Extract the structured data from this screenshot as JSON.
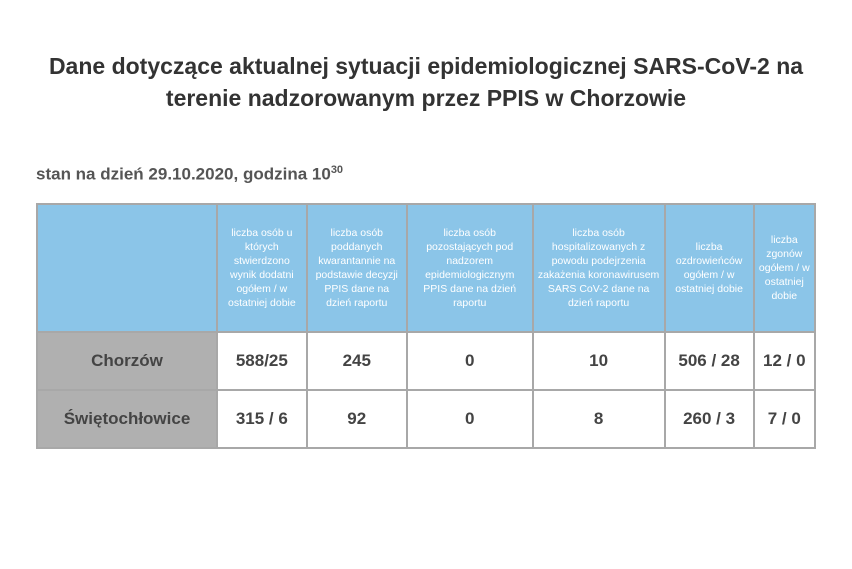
{
  "title": "Dane dotyczące aktualnej sytuacji epidemiologicznej SARS-CoV-2 na terenie nadzorowanym przez PPIS w Chorzowie",
  "status_prefix": "stan na dzień ",
  "status_date": "29.10.2020",
  "status_time_prefix": ", godzina 10",
  "status_time_sup": "30",
  "table": {
    "header_bg": "#8bc5e8",
    "header_text_color": "#ffffff",
    "rowlabel_bg": "#b0b0b0",
    "border_color": "#a8a8a8",
    "columns": [
      "liczba osób u których stwierdzono wynik dodatni ogółem / w ostatniej dobie",
      "liczba osób poddanych kwarantannie na podstawie decyzji PPIS dane na dzień raportu",
      "liczba osób pozostających pod nadzorem epidemiologicznym PPIS dane na dzień raportu",
      "liczba osób hospitalizowanych z powodu podejrzenia zakażenia koronawirusem SARS CoV-2 dane na dzień raportu",
      "liczba ozdrowieńców ogółem / w ostatniej dobie",
      "liczba zgonów ogółem / w ostatniej dobie"
    ],
    "rows": [
      {
        "label": "Chorzów",
        "cells": [
          "588/25",
          "245",
          "0",
          "10",
          "506 / 28",
          "12 / 0"
        ]
      },
      {
        "label": "Świętochłowice",
        "cells": [
          "315 / 6",
          "92",
          "0",
          "8",
          "260 / 3",
          "7 / 0"
        ]
      }
    ]
  }
}
